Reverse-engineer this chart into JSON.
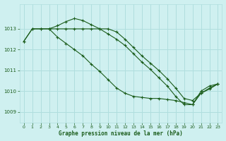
{
  "title": "Graphe pression niveau de la mer (hPa)",
  "background_color": "#cff0f0",
  "grid_color": "#b0dede",
  "line_color": "#1a5c1a",
  "xlim": [
    -0.5,
    23.5
  ],
  "ylim": [
    1008.5,
    1014.2
  ],
  "yticks": [
    1009,
    1010,
    1011,
    1012,
    1013
  ],
  "xticks": [
    0,
    1,
    2,
    3,
    4,
    5,
    6,
    7,
    8,
    9,
    10,
    11,
    12,
    13,
    14,
    15,
    16,
    17,
    18,
    19,
    20,
    21,
    22,
    23
  ],
  "series1_x": [
    0,
    1,
    2,
    3,
    4,
    5,
    6,
    7,
    8,
    9,
    10,
    11,
    12,
    13,
    14,
    15,
    16,
    17,
    18,
    19,
    20,
    21,
    22,
    23
  ],
  "series1_y": [
    1012.4,
    1013.0,
    1013.0,
    1013.0,
    1013.15,
    1013.35,
    1013.5,
    1013.4,
    1013.2,
    1013.0,
    1012.75,
    1012.5,
    1012.2,
    1011.8,
    1011.4,
    1011.05,
    1010.65,
    1010.25,
    1009.75,
    1009.35,
    1009.35,
    1010.0,
    1010.25,
    1010.35
  ],
  "series2_x": [
    0,
    1,
    2,
    3,
    4,
    5,
    6,
    7,
    8,
    9,
    10,
    11,
    12,
    13,
    14,
    15,
    16,
    17,
    18,
    19,
    20,
    21,
    22,
    23
  ],
  "series2_y": [
    1012.4,
    1013.0,
    1013.0,
    1013.0,
    1013.0,
    1013.0,
    1013.0,
    1013.0,
    1013.0,
    1013.0,
    1013.0,
    1012.85,
    1012.5,
    1012.1,
    1011.7,
    1011.35,
    1011.0,
    1010.6,
    1010.15,
    1009.65,
    1009.55,
    1009.9,
    1010.1,
    1010.35
  ],
  "series3_x": [
    3,
    4,
    5,
    6,
    7,
    8,
    9,
    10,
    11,
    12,
    13,
    14,
    15,
    16,
    17,
    18,
    19,
    20,
    21,
    22,
    23
  ],
  "series3_y": [
    1013.0,
    1012.6,
    1012.3,
    1012.0,
    1011.7,
    1011.3,
    1010.95,
    1010.55,
    1010.15,
    1009.9,
    1009.75,
    1009.7,
    1009.65,
    1009.65,
    1009.6,
    1009.55,
    1009.45,
    1009.35,
    1009.9,
    1010.15,
    1010.35
  ]
}
